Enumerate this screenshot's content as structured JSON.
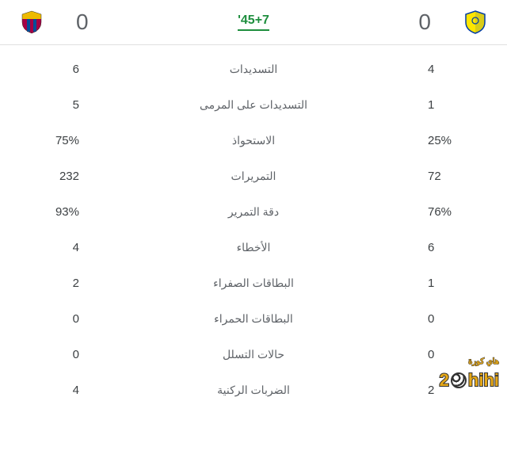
{
  "header": {
    "time": "45+7'",
    "home": {
      "score": "0",
      "logo_colors": {
        "bg": "#ffe600",
        "accent": "#003da5"
      }
    },
    "away": {
      "score": "0",
      "logo_colors": {
        "stripe1": "#a50044",
        "stripe2": "#004d98",
        "top": "#edbb00"
      }
    }
  },
  "stats": [
    {
      "label": "التسديدات",
      "home": "4",
      "away": "6"
    },
    {
      "label": "التسديدات على المرمى",
      "home": "1",
      "away": "5"
    },
    {
      "label": "الاستحواذ",
      "home": "25%",
      "away": "75%"
    },
    {
      "label": "التمريرات",
      "home": "72",
      "away": "232"
    },
    {
      "label": "دقة التمرير",
      "home": "76%",
      "away": "93%"
    },
    {
      "label": "الأخطاء",
      "home": "6",
      "away": "4"
    },
    {
      "label": "البطاقات الصفراء",
      "home": "1",
      "away": "2"
    },
    {
      "label": "البطاقات الحمراء",
      "home": "0",
      "away": "0"
    },
    {
      "label": "حالات التسلل",
      "home": "0",
      "away": "0"
    },
    {
      "label": "الضربات الركنية",
      "home": "2",
      "away": "4"
    }
  ],
  "watermark": {
    "text": "hihi",
    "suffix": "2",
    "ar": "هاي كورة"
  }
}
